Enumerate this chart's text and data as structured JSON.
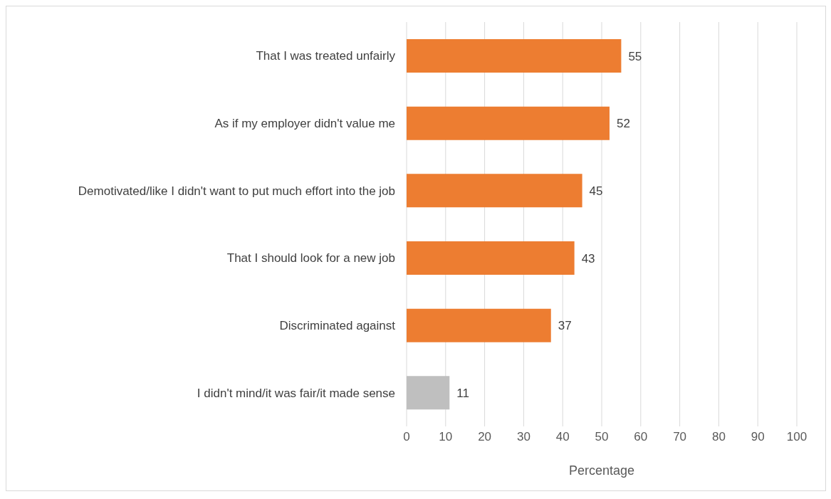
{
  "chart_data": {
    "type": "bar",
    "orientation": "horizontal",
    "xlabel": "Percentage",
    "categories": [
      "That I was treated unfairly",
      "As if my employer didn't value me",
      "Demotivated/like I didn't want to put much effort into the job",
      "That I should look for a new job",
      "Discriminated against",
      "I didn't mind/it was fair/it made sense"
    ],
    "values": [
      55,
      52,
      45,
      43,
      37,
      11
    ],
    "colors": [
      "#ed7d31",
      "#ed7d31",
      "#ed7d31",
      "#ed7d31",
      "#ed7d31",
      "#bfbfbf"
    ],
    "xlim": [
      0,
      100
    ],
    "xticks": [
      0,
      10,
      20,
      30,
      40,
      50,
      60,
      70,
      80,
      90,
      100
    ],
    "grid": "x",
    "data_labels": true
  }
}
